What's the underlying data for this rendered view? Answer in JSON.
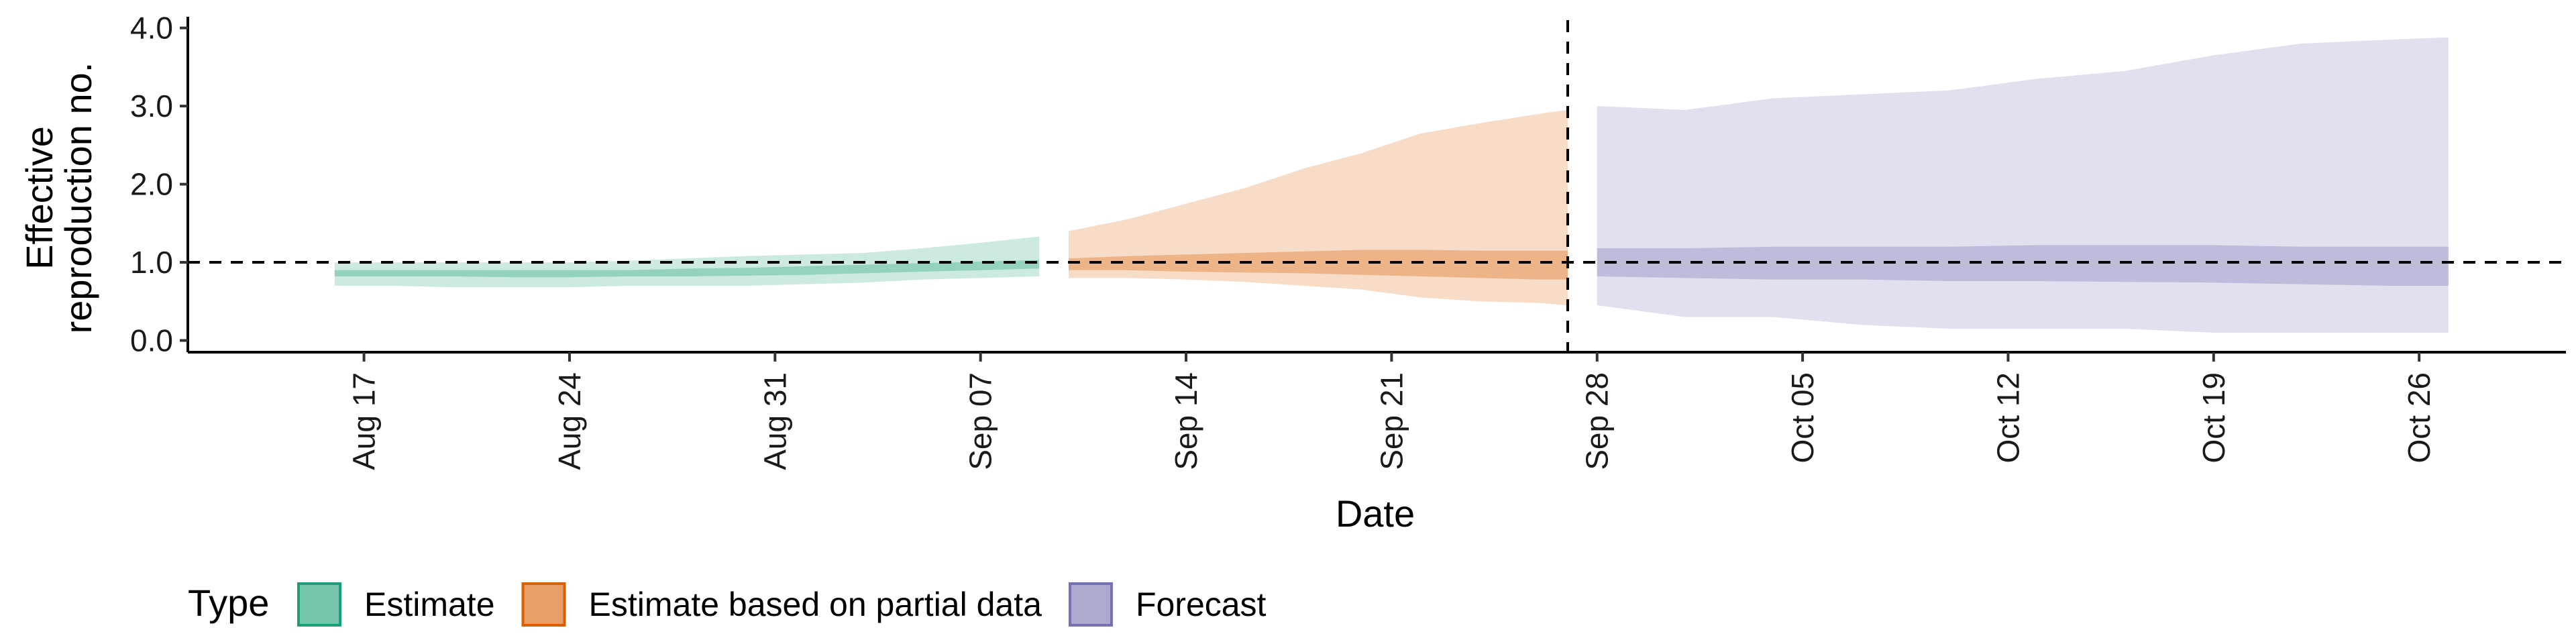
{
  "chart_data": {
    "type": "area",
    "title": "",
    "xlabel": "Date",
    "ylabel": "Effective reproduction no.",
    "ylabel_lines": [
      "Effective",
      "reproduction no."
    ],
    "x_ticks": [
      "2020-08-17",
      "2020-08-24",
      "2020-08-31",
      "2020-09-07",
      "2020-09-14",
      "2020-09-21",
      "2020-09-28",
      "2020-10-05",
      "2020-10-12",
      "2020-10-19",
      "2020-10-26"
    ],
    "x_tick_labels": [
      "Aug 17",
      "Aug 24",
      "Aug 31",
      "Sep 07",
      "Sep 14",
      "Sep 21",
      "Sep 28",
      "Oct 05",
      "Oct 12",
      "Oct 19",
      "Oct 26"
    ],
    "xlim": [
      "2020-08-11",
      "2020-10-31"
    ],
    "y_ticks": [
      0,
      1,
      2,
      3,
      4
    ],
    "y_tick_labels": [
      "0.0",
      "1.0",
      "2.0",
      "3.0",
      "4.0"
    ],
    "ylim": [
      -0.15,
      4.1
    ],
    "reference_hline": 1.0,
    "reference_vline": "2020-09-27",
    "grid": false,
    "legend": {
      "title": "Type",
      "position": "bottom-left",
      "entries": [
        {
          "label": "Estimate",
          "color": "#1b9e77"
        },
        {
          "label": "Estimate based on partial data",
          "color": "#d95f02"
        },
        {
          "label": "Forecast",
          "color": "#7570b3"
        }
      ]
    },
    "series": [
      {
        "name": "Estimate",
        "color": "#1b9e77",
        "x": [
          "2020-08-16",
          "2020-08-18",
          "2020-08-20",
          "2020-08-22",
          "2020-08-24",
          "2020-08-26",
          "2020-08-28",
          "2020-08-30",
          "2020-09-01",
          "2020-09-03",
          "2020-09-05",
          "2020-09-07",
          "2020-09-09"
        ],
        "outer_upper": [
          1.0,
          1.0,
          1.0,
          1.0,
          1.0,
          1.02,
          1.05,
          1.08,
          1.1,
          1.12,
          1.18,
          1.25,
          1.33
        ],
        "outer_lower": [
          0.7,
          0.7,
          0.68,
          0.68,
          0.68,
          0.7,
          0.7,
          0.7,
          0.72,
          0.74,
          0.78,
          0.8,
          0.82
        ],
        "inner_upper": [
          0.9,
          0.9,
          0.9,
          0.9,
          0.9,
          0.9,
          0.92,
          0.93,
          0.95,
          0.97,
          0.99,
          1.01,
          1.03
        ],
        "inner_lower": [
          0.82,
          0.82,
          0.82,
          0.81,
          0.81,
          0.82,
          0.82,
          0.83,
          0.84,
          0.86,
          0.88,
          0.9,
          0.92
        ]
      },
      {
        "name": "Estimate based on partial data",
        "color": "#d95f02",
        "x": [
          "2020-09-10",
          "2020-09-12",
          "2020-09-14",
          "2020-09-16",
          "2020-09-18",
          "2020-09-20",
          "2020-09-22",
          "2020-09-24",
          "2020-09-26",
          "2020-09-27"
        ],
        "outer_upper": [
          1.4,
          1.55,
          1.75,
          1.95,
          2.2,
          2.4,
          2.65,
          2.78,
          2.9,
          2.95
        ],
        "outer_lower": [
          0.8,
          0.8,
          0.78,
          0.75,
          0.7,
          0.65,
          0.55,
          0.5,
          0.48,
          0.45
        ],
        "inner_upper": [
          1.05,
          1.08,
          1.1,
          1.12,
          1.14,
          1.16,
          1.16,
          1.15,
          1.15,
          1.15
        ],
        "inner_lower": [
          0.9,
          0.9,
          0.88,
          0.87,
          0.86,
          0.84,
          0.82,
          0.8,
          0.78,
          0.78
        ]
      },
      {
        "name": "Forecast",
        "color": "#7570b3",
        "x": [
          "2020-09-28",
          "2020-10-01",
          "2020-10-04",
          "2020-10-07",
          "2020-10-10",
          "2020-10-13",
          "2020-10-16",
          "2020-10-19",
          "2020-10-22",
          "2020-10-25",
          "2020-10-27"
        ],
        "outer_upper": [
          3.0,
          2.95,
          3.1,
          3.15,
          3.2,
          3.35,
          3.45,
          3.65,
          3.8,
          3.85,
          3.88
        ],
        "outer_lower": [
          0.45,
          0.3,
          0.3,
          0.2,
          0.15,
          0.15,
          0.15,
          0.1,
          0.1,
          0.1,
          0.1
        ],
        "inner_upper": [
          1.18,
          1.18,
          1.2,
          1.2,
          1.2,
          1.22,
          1.22,
          1.22,
          1.2,
          1.2,
          1.2
        ],
        "inner_lower": [
          0.82,
          0.8,
          0.78,
          0.78,
          0.76,
          0.76,
          0.75,
          0.74,
          0.72,
          0.7,
          0.7
        ]
      }
    ]
  }
}
